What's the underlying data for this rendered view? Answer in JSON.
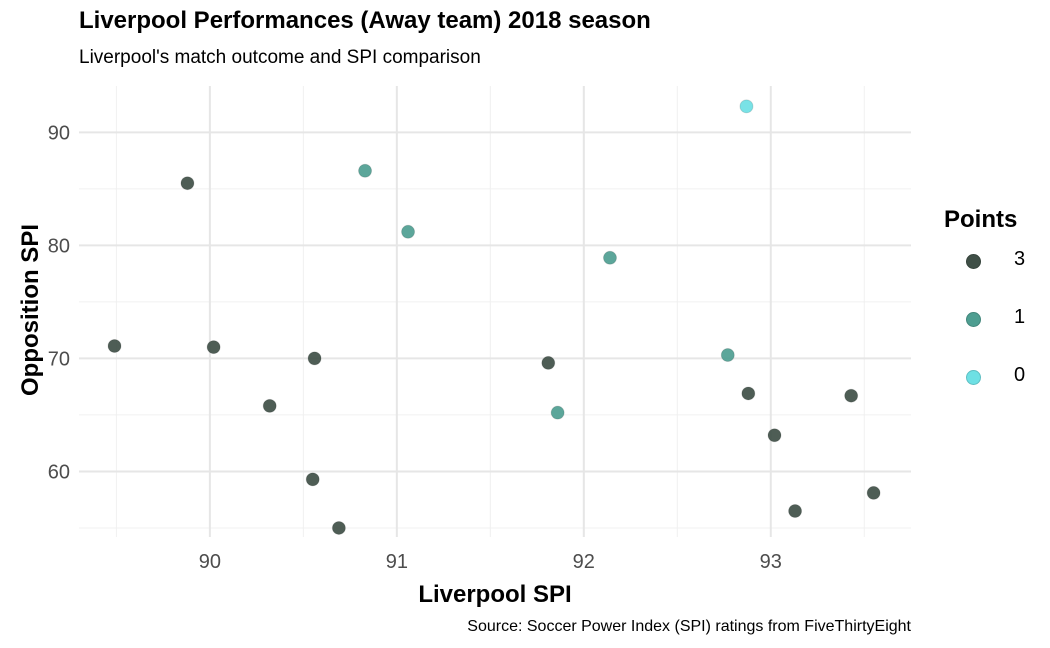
{
  "title": "Liverpool Performances (Away team) 2018 season",
  "subtitle": "Liverpool's match outcome and SPI comparison",
  "caption": "Source: Soccer Power Index (SPI) ratings from FiveThirtyEight",
  "chart_data": {
    "type": "scatter",
    "xlabel": "Liverpool SPI",
    "ylabel": "Opposition SPI",
    "xlim": [
      89.3,
      93.75
    ],
    "ylim": [
      54.2,
      94.1
    ],
    "xticks": [
      90,
      91,
      92,
      93
    ],
    "yticks": [
      60,
      70,
      80,
      90
    ],
    "grid": true,
    "legend": {
      "title": "Points",
      "position": "right"
    },
    "series": [
      {
        "name": "3",
        "color": "#3f4f46",
        "points": [
          {
            "x": 89.49,
            "y": 71.1
          },
          {
            "x": 89.88,
            "y": 85.5
          },
          {
            "x": 90.02,
            "y": 71.0
          },
          {
            "x": 90.32,
            "y": 65.8
          },
          {
            "x": 90.55,
            "y": 59.3
          },
          {
            "x": 90.56,
            "y": 70.0
          },
          {
            "x": 90.69,
            "y": 55.0
          },
          {
            "x": 91.81,
            "y": 69.6
          },
          {
            "x": 92.88,
            "y": 66.9
          },
          {
            "x": 93.02,
            "y": 63.2
          },
          {
            "x": 93.13,
            "y": 56.5
          },
          {
            "x": 93.43,
            "y": 66.7
          },
          {
            "x": 93.55,
            "y": 58.1
          }
        ]
      },
      {
        "name": "1",
        "color": "#4e9e91",
        "points": [
          {
            "x": 90.83,
            "y": 86.6
          },
          {
            "x": 91.06,
            "y": 81.2
          },
          {
            "x": 91.86,
            "y": 65.2
          },
          {
            "x": 92.14,
            "y": 78.9
          },
          {
            "x": 92.77,
            "y": 70.3
          }
        ]
      },
      {
        "name": "0",
        "color": "#6ee0e4",
        "points": [
          {
            "x": 92.87,
            "y": 92.3
          }
        ]
      }
    ]
  }
}
